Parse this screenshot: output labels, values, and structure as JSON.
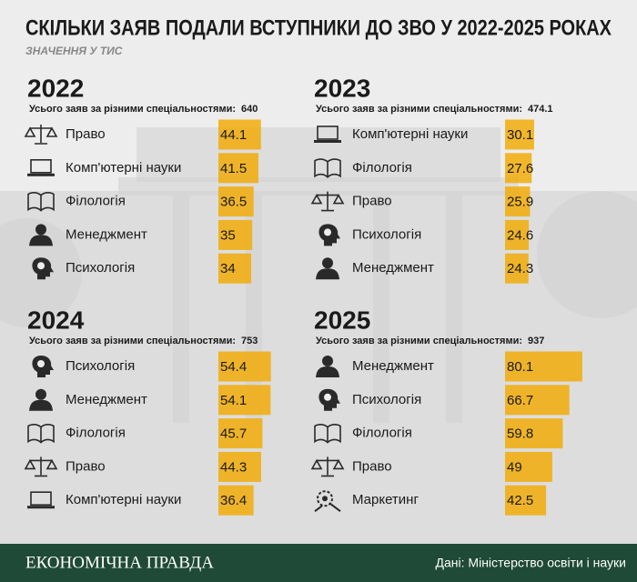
{
  "header": {
    "title": "СКІЛЬКИ ЗАЯВ ПОДАЛИ ВСТУПНИКИ ДО ЗВО У 2022-2025 РОКАХ",
    "subtitle": "ЗНАЧЕННЯ У ТИС"
  },
  "chart_data": [
    {
      "type": "bar",
      "title": "2022",
      "total_label": "Усього заяв за різними спеціальностями:",
      "total": 640,
      "categories": [
        "Право",
        "Комп'ютерні науки",
        "Філологія",
        "Менеджмент",
        "Психологія"
      ],
      "values": [
        44.1,
        41.5,
        36.5,
        35,
        34
      ],
      "color": "#f2a900"
    },
    {
      "type": "bar",
      "title": "2023",
      "total_label": "Усього заяв за різними спеціальностями:",
      "total": 474.1,
      "categories": [
        "Комп'ютерні науки",
        "Філологія",
        "Право",
        "Психологія",
        "Менеджмент"
      ],
      "values": [
        30.1,
        27.6,
        25.9,
        24.6,
        24.3
      ],
      "color": "#f2a900"
    },
    {
      "type": "bar",
      "title": "2024",
      "total_label": "Усього заяв за різними спеціальностями:",
      "total": 753,
      "categories": [
        "Психологія",
        "Менеджмент",
        "Філологія",
        "Право",
        "Комп'ютерні науки"
      ],
      "values": [
        54.4,
        54.1,
        45.7,
        44.3,
        36.4
      ],
      "color": "#f2a900"
    },
    {
      "type": "bar",
      "title": "2025",
      "total_label": "Усього заяв за різними спеціальностями:",
      "total": 937,
      "categories": [
        "Менеджмент",
        "Психологія",
        "Філологія",
        "Право",
        "Маркетинг"
      ],
      "values": [
        80.1,
        66.7,
        59.8,
        49,
        42.5
      ],
      "color": "#f2a900"
    }
  ],
  "footer": {
    "brand": "ЕКОНОМІЧНА ПРАВДА",
    "source": "Дані: Міністерство освіти і науки"
  }
}
